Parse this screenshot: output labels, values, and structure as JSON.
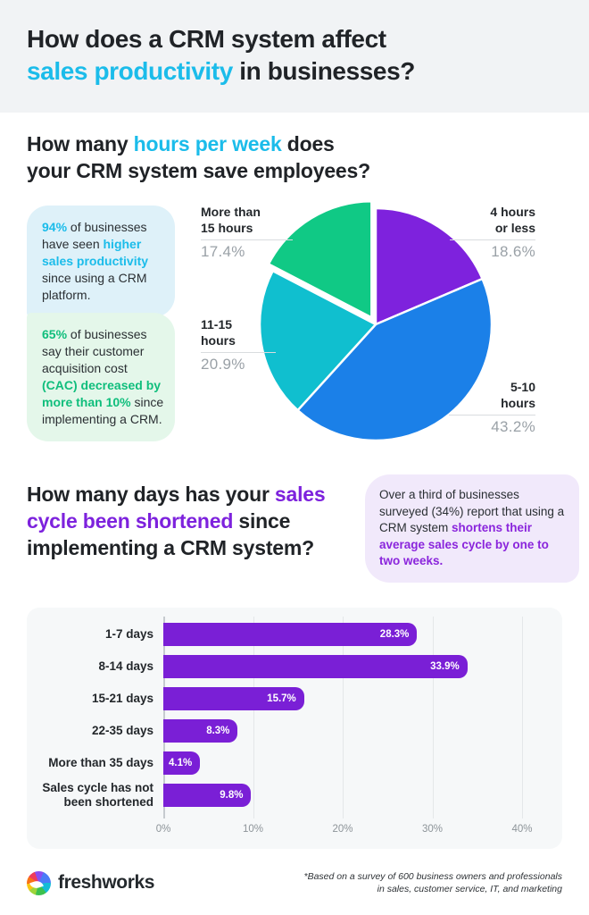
{
  "header": {
    "line1": "How does a CRM system affect",
    "line2_highlight": "sales productivity",
    "line2_rest": " in businesses?"
  },
  "section_hours": {
    "title_p1": "How many ",
    "title_highlight": "hours per week",
    "title_p2": " does",
    "title_line2": "your CRM system save employees?",
    "callout_productivity": {
      "p1": "94%",
      "p2": " of businesses have seen ",
      "p3": "higher sales productivity",
      "p4": " since using a CRM platform."
    },
    "callout_cac": {
      "p1": "65%",
      "p2": " of businesses say their customer acquisition cost ",
      "p3": "(CAC) decreased by more than 10%",
      "p4": " since implementing a CRM."
    }
  },
  "section_days": {
    "title_p1": "How many days has your ",
    "title_highlight": "sales cycle been shortened",
    "title_p2": " since implementing a CRM system?",
    "callout": {
      "p1": "Over a third of businesses surveyed (34%) report that using a CRM system ",
      "p2": "shortens their average sales cycle by one to two weeks."
    }
  },
  "footer": {
    "brand": "freshworks",
    "note_line1": "*Based on a survey of 600 business owners and professionals",
    "note_line2": "in sales, customer service, IT, and marketing"
  },
  "colors": {
    "cyan_accent": "#1bbcea",
    "purple_accent": "#7d22dd",
    "green_accent": "#0fbe7c",
    "bar_purple": "#7a1fd6",
    "callout_blue_bg": "#def1f9",
    "callout_green_bg": "#e4f7ea",
    "callout_purple_bg": "#f1e9fb",
    "header_bg": "#f1f3f5",
    "chart_card_bg": "#f6f8f9",
    "pct_label_gray": "#9aa1a7"
  },
  "chart_data": [
    {
      "type": "pie",
      "title": "How many hours per week does your CRM system save employees?",
      "start_angle_deg": -90,
      "direction": "clockwise",
      "slices": [
        {
          "label": "4 hours or less",
          "label_lines": [
            "4 hours",
            "or less"
          ],
          "value": 18.6,
          "pct_text": "18.6%",
          "color": "#7e22dd",
          "exploded": false
        },
        {
          "label": "5-10 hours",
          "label_lines": [
            "5-10",
            "hours"
          ],
          "value": 43.2,
          "pct_text": "43.2%",
          "color": "#1b80e8",
          "exploded": false
        },
        {
          "label": "11-15 hours",
          "label_lines": [
            "11-15",
            "hours"
          ],
          "value": 20.9,
          "pct_text": "20.9%",
          "color": "#10bfcf",
          "exploded": false
        },
        {
          "label": "More than 15 hours",
          "label_lines": [
            "More than",
            "15 hours"
          ],
          "value": 17.4,
          "pct_text": "17.4%",
          "color": "#10c985",
          "exploded": true
        }
      ]
    },
    {
      "type": "bar",
      "orientation": "horizontal",
      "categories": [
        "1-7 days",
        "8-14 days",
        "15-21 days",
        "22-35 days",
        "More than 35 days",
        "Sales cycle has not been shortened"
      ],
      "values": [
        28.3,
        33.9,
        15.7,
        8.3,
        4.1,
        9.8
      ],
      "value_labels": [
        "28.3%",
        "33.9%",
        "15.7%",
        "8.3%",
        "4.1%",
        "9.8%"
      ],
      "bar_color": "#7a1fd6",
      "xlim": [
        0,
        40
      ],
      "x_ticks": [
        "0%",
        "10%",
        "20%",
        "30%",
        "40%"
      ],
      "grid": true,
      "legend": "none"
    }
  ]
}
